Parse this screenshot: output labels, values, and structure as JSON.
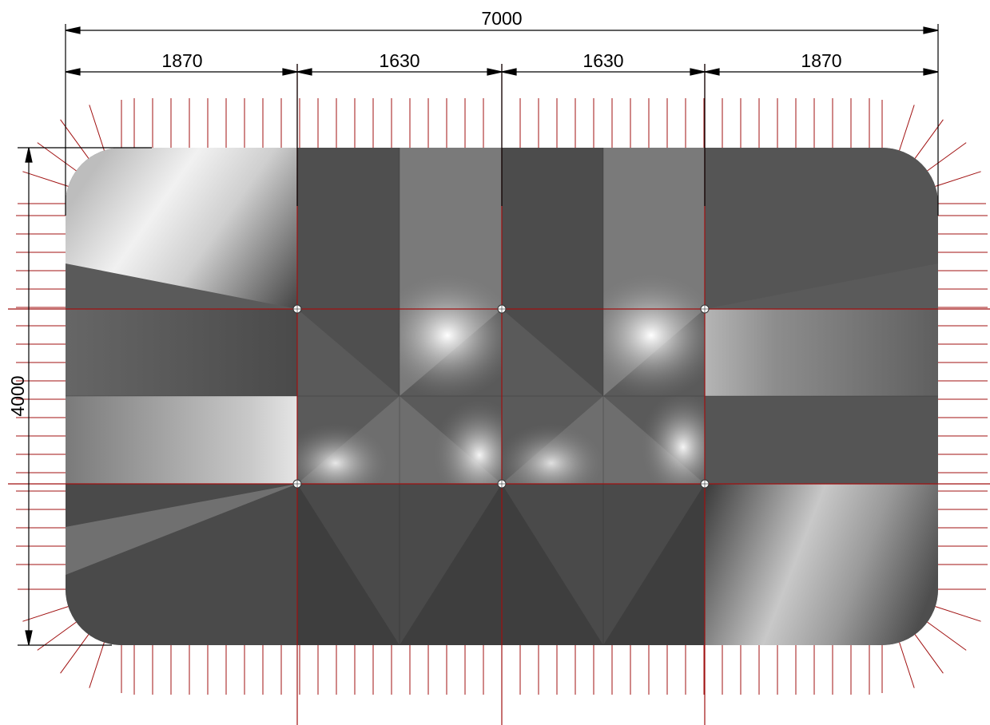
{
  "drawing": {
    "dimensions": {
      "overall_width": "7000",
      "segments": [
        "1870",
        "1630",
        "1630",
        "1870"
      ],
      "overall_height": "4000"
    },
    "support_points": [
      {
        "row": "upper",
        "column": 1
      },
      {
        "row": "upper",
        "column": 2
      },
      {
        "row": "upper",
        "column": 3
      },
      {
        "row": "lower",
        "column": 1
      },
      {
        "row": "lower",
        "column": 2
      },
      {
        "row": "lower",
        "column": 3
      }
    ],
    "colors": {
      "grid_lines": "#a01010",
      "cables": "#a01010",
      "dimension_lines": "#000000",
      "membrane_dark": "#3a3a3a",
      "membrane_light": "#f2f2f2"
    }
  }
}
